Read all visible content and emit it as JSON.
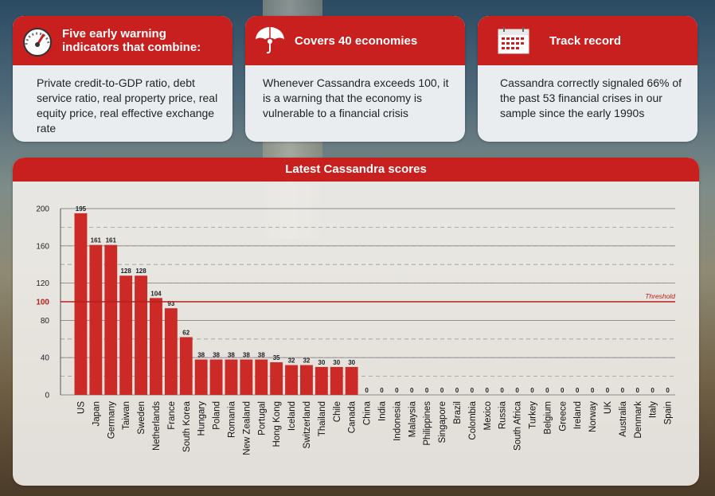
{
  "cards": [
    {
      "icon": "speedometer-icon",
      "title_lines": [
        "Five early warning",
        "indicators that combine:"
      ],
      "body": "Private credit-to-GDP ratio, debt service ratio, real property price, real equity price, real effective exchange rate"
    },
    {
      "icon": "umbrella-icon",
      "title_lines": [
        "Covers 40 economies"
      ],
      "body": "Whenever Cassandra exceeds 100, it is a warning that the economy is vulnerable to a financial crisis"
    },
    {
      "icon": "calendar-icon",
      "title_lines": [
        "Track record"
      ],
      "body": "Cassandra correctly signaled 66% of the past 53 financial crises in our sample since the early 1990s"
    }
  ],
  "colors": {
    "accent": "#c8201e",
    "bar": "#cc2a26",
    "threshold": "#b8201e"
  },
  "chart_data": {
    "type": "bar",
    "title": "Latest Cassandra scores",
    "categories": [
      "US",
      "Japan",
      "Germany",
      "Taiwan",
      "Sweden",
      "Netherlands",
      "France",
      "South Korea",
      "Hungary",
      "Poland",
      "Romania",
      "New Zealand",
      "Portugal",
      "Hong Kong",
      "Iceland",
      "Switzerland",
      "Thailand",
      "Chile",
      "Canada",
      "China",
      "India",
      "Indonesia",
      "Malaysia",
      "Philippines",
      "Singapore",
      "Brazil",
      "Colombia",
      "Mexico",
      "Russia",
      "South Africa",
      "Turkey",
      "Belgium",
      "Greece",
      "Ireland",
      "Norway",
      "UK",
      "Australia",
      "Denmark",
      "Italy",
      "Spain"
    ],
    "values": [
      195,
      161,
      161,
      128,
      128,
      104,
      93,
      62,
      38,
      38,
      38,
      38,
      38,
      35,
      32,
      32,
      30,
      30,
      30,
      0,
      0,
      0,
      0,
      0,
      0,
      0,
      0,
      0,
      0,
      0,
      0,
      0,
      0,
      0,
      0,
      0,
      0,
      0,
      0,
      0
    ],
    "yticks": [
      0,
      40,
      80,
      100,
      120,
      160,
      200
    ],
    "ylim": [
      0,
      200
    ],
    "threshold": {
      "value": 100,
      "label": "Threshold"
    },
    "grid": true
  }
}
